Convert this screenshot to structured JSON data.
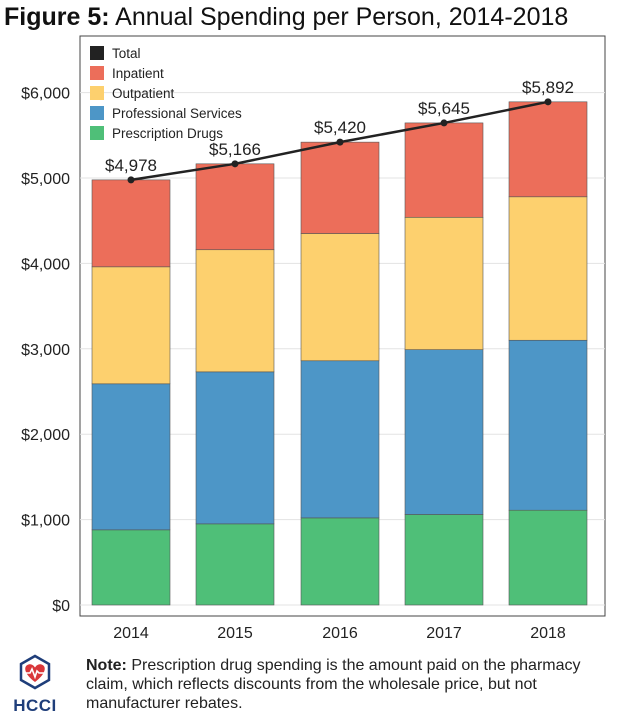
{
  "title": {
    "figure_label": "Figure 5:",
    "text": "Annual Spending per Person, 2014-2018"
  },
  "chart_data": {
    "type": "bar",
    "stacked": true,
    "categories": [
      "2014",
      "2015",
      "2016",
      "2017",
      "2018"
    ],
    "series": [
      {
        "name": "Prescription Drugs",
        "color": "#4fbf78",
        "values": [
          880,
          950,
          1020,
          1060,
          1110
        ]
      },
      {
        "name": "Professional Services",
        "color": "#4d96c7",
        "values": [
          1710,
          1780,
          1840,
          1930,
          1990
        ]
      },
      {
        "name": "Outpatient",
        "color": "#fdd06e",
        "values": [
          1370,
          1430,
          1490,
          1550,
          1680
        ]
      },
      {
        "name": "Inpatient",
        "color": "#ec6e5a",
        "values": [
          1018,
          1006,
          1070,
          1105,
          1112
        ]
      }
    ],
    "total": {
      "name": "Total",
      "color": "#222222",
      "values": [
        4978,
        5166,
        5420,
        5645,
        5892
      ],
      "labels": [
        "$4,978",
        "$5,166",
        "$5,420",
        "$5,645",
        "$5,892"
      ]
    },
    "legend_order": [
      "Total",
      "Inpatient",
      "Outpatient",
      "Professional Services",
      "Prescription Drugs"
    ],
    "legend_position": "top-left",
    "ylim": [
      0,
      6500
    ],
    "yticks": [
      0,
      1000,
      2000,
      3000,
      4000,
      5000,
      6000
    ],
    "ytick_labels": [
      "$0",
      "$1,000",
      "$2,000",
      "$3,000",
      "$4,000",
      "$5,000",
      "$6,000"
    ],
    "grid": true
  },
  "note": {
    "label": "Note:",
    "text": " Prescription drug spending is the amount paid on the pharmacy claim, which reflects discounts from the wholesale price, but not manufacturer rebates."
  },
  "logo": {
    "text": "HCCI",
    "color": "#1f3e7a",
    "accent": "#d9373a"
  }
}
